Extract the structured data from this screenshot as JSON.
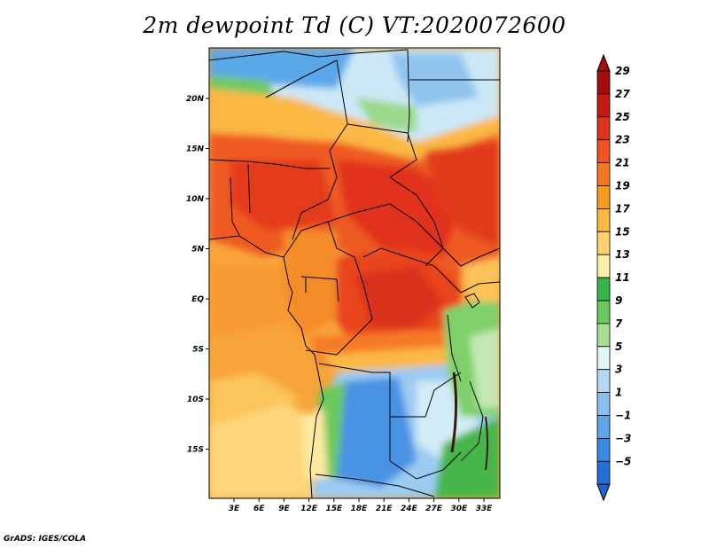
{
  "title": "2m dewpoint Td (C) VT:2020072600",
  "credit": "GrADS: IGES/COLA",
  "map": {
    "lat_labels": [
      {
        "lat": 20,
        "text": "20N"
      },
      {
        "lat": 15,
        "text": "15N"
      },
      {
        "lat": 10,
        "text": "10N"
      },
      {
        "lat": 5,
        "text": "5N"
      },
      {
        "lat": 0,
        "text": "EQ"
      },
      {
        "lat": -5,
        "text": "5S"
      },
      {
        "lat": -10,
        "text": "10S"
      },
      {
        "lat": -15,
        "text": "15S"
      }
    ],
    "lon_labels": [
      {
        "lon": 3,
        "text": "3E"
      },
      {
        "lon": 6,
        "text": "6E"
      },
      {
        "lon": 9,
        "text": "9E"
      },
      {
        "lon": 12,
        "text": "12E"
      },
      {
        "lon": 15,
        "text": "15E"
      },
      {
        "lon": 18,
        "text": "18E"
      },
      {
        "lon": 21,
        "text": "21E"
      },
      {
        "lon": 24,
        "text": "24E"
      },
      {
        "lon": 27,
        "text": "27E"
      },
      {
        "lon": 30,
        "text": "30E"
      },
      {
        "lon": 33,
        "text": "33E"
      }
    ]
  },
  "colorbar": {
    "levels": [
      {
        "label": "29",
        "color": "#a50d0d"
      },
      {
        "label": "27",
        "color": "#c41a13"
      },
      {
        "label": "25",
        "color": "#e0331b"
      },
      {
        "label": "23",
        "color": "#ee5320"
      },
      {
        "label": "21",
        "color": "#f47a21"
      },
      {
        "label": "19",
        "color": "#f89a22"
      },
      {
        "label": "17",
        "color": "#fbb845"
      },
      {
        "label": "15",
        "color": "#fdd370"
      },
      {
        "label": "13",
        "color": "#fef0a8"
      },
      {
        "label": "11",
        "color": "#35b44a"
      },
      {
        "label": "9",
        "color": "#6cc85d"
      },
      {
        "label": "7",
        "color": "#a8dd96"
      },
      {
        "label": "5",
        "color": "#e2f6f8"
      },
      {
        "label": "3",
        "color": "#b5d8f5"
      },
      {
        "label": "1",
        "color": "#8cc0ee"
      },
      {
        "label": "−1",
        "color": "#5ea6ea"
      },
      {
        "label": "−3",
        "color": "#3a8ae3"
      },
      {
        "label": "−5",
        "color": "#2470d8"
      }
    ],
    "top_color": "#a50d0d",
    "bottom_color": "#1e63d2"
  }
}
